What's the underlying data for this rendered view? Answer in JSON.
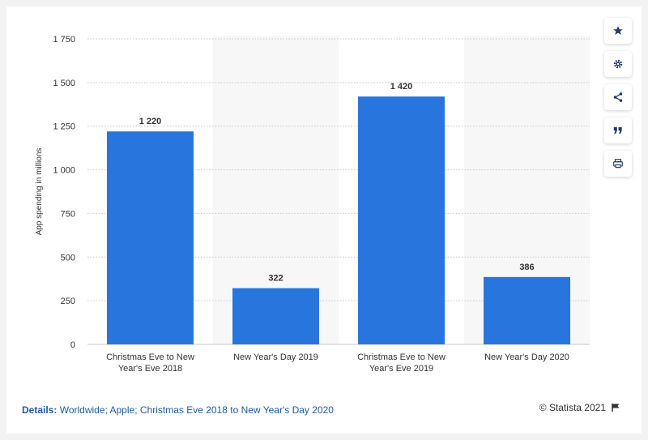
{
  "chart_data": {
    "type": "bar",
    "categories": [
      "Christmas Eve to New Year's Eve 2018",
      "New Year's Day 2019",
      "Christmas Eve to New Year's Eve 2019",
      "New Year's Day 2020"
    ],
    "values": [
      1220,
      322,
      1420,
      386
    ],
    "value_labels": [
      "1 220",
      "322",
      "1 420",
      "386"
    ],
    "ylabel": "App spending in millions",
    "ylim": [
      0,
      1750
    ],
    "yticks": [
      0,
      250,
      500,
      750,
      1000,
      1250,
      1500,
      1750
    ],
    "ytick_labels": [
      "0",
      "250",
      "500",
      "750",
      "1 000",
      "1 250",
      "1 500",
      "1 750"
    ],
    "grid": true,
    "legend": "none",
    "bar_color": "#2876dd"
  },
  "toolbar": {
    "items": [
      {
        "name": "star-icon"
      },
      {
        "name": "gear-icon"
      },
      {
        "name": "share-icon"
      },
      {
        "name": "quote-icon"
      },
      {
        "name": "print-icon"
      }
    ]
  },
  "footer": {
    "details_label": "Details:",
    "details_text": "Worldwide; Apple; Christmas Eve 2018 to New Year's Day 2020",
    "copyright": "© Statista 2021"
  }
}
